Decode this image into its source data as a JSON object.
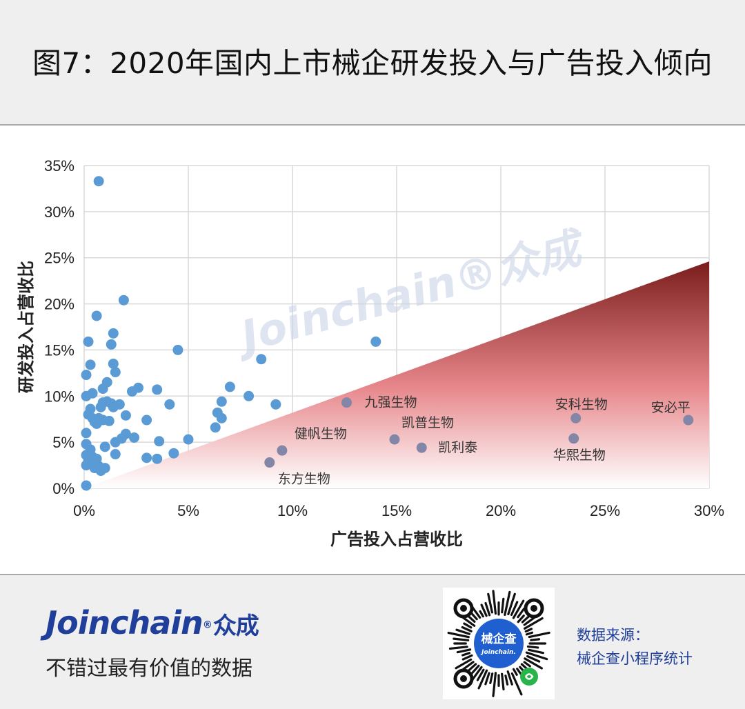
{
  "header": {
    "title": "图7：2020年国内上市械企研发投入与广告投入倾向"
  },
  "chart_data": {
    "type": "scatter",
    "xlabel": "广告投入占营收比",
    "ylabel": "研发投入占营收比",
    "xlim": [
      0,
      30
    ],
    "ylim": [
      0,
      35
    ],
    "x_ticks": [
      "0%",
      "5%",
      "10%",
      "15%",
      "20%",
      "25%",
      "30%"
    ],
    "y_ticks": [
      "0%",
      "5%",
      "10%",
      "15%",
      "20%",
      "25%",
      "30%",
      "35%"
    ],
    "grid": true,
    "watermark": "Joinchain®众成",
    "triangle_region": {
      "vertices": [
        [
          0,
          0
        ],
        [
          30,
          0
        ],
        [
          30,
          24.6
        ]
      ],
      "color_top": "#7a1c1c",
      "color_bottom": "#ffffff"
    },
    "colors": {
      "point": "#5b9bd5",
      "labeled_point": "#8486a8",
      "grid": "#d9d9d9"
    },
    "series": [
      {
        "values": [
          [
            0.1,
            0.3
          ],
          [
            0.1,
            2.5
          ],
          [
            0.2,
            3.0
          ],
          [
            0.1,
            3.6
          ],
          [
            0.3,
            4.2
          ],
          [
            0.1,
            4.8
          ],
          [
            0.1,
            6.0
          ],
          [
            0.2,
            8.0
          ],
          [
            0.3,
            8.6
          ],
          [
            0.4,
            7.6
          ],
          [
            0.6,
            7.0
          ],
          [
            0.4,
            10.3
          ],
          [
            0.1,
            10.0
          ],
          [
            0.1,
            12.3
          ],
          [
            0.3,
            13.4
          ],
          [
            0.2,
            15.9
          ],
          [
            0.6,
            18.7
          ],
          [
            0.7,
            33.3
          ],
          [
            0.5,
            2.2
          ],
          [
            0.6,
            3.2
          ],
          [
            0.8,
            1.9
          ],
          [
            1.0,
            2.2
          ],
          [
            0.5,
            2.9
          ],
          [
            0.4,
            3.4
          ],
          [
            0.7,
            2.4
          ],
          [
            0.5,
            7.2
          ],
          [
            0.7,
            7.6
          ],
          [
            0.9,
            7.4
          ],
          [
            1.2,
            7.3
          ],
          [
            0.8,
            8.8
          ],
          [
            0.9,
            9.3
          ],
          [
            1.1,
            9.4
          ],
          [
            1.3,
            9.2
          ],
          [
            1.4,
            8.8
          ],
          [
            1.7,
            9.1
          ],
          [
            0.9,
            10.8
          ],
          [
            1.1,
            11.5
          ],
          [
            1.5,
            12.6
          ],
          [
            1.4,
            13.5
          ],
          [
            1.3,
            15.6
          ],
          [
            1.4,
            16.8
          ],
          [
            1.0,
            4.5
          ],
          [
            1.5,
            3.7
          ],
          [
            1.5,
            5.0
          ],
          [
            1.8,
            5.4
          ],
          [
            2.0,
            5.9
          ],
          [
            2.0,
            7.9
          ],
          [
            2.4,
            5.5
          ],
          [
            2.3,
            10.5
          ],
          [
            2.6,
            10.9
          ],
          [
            1.9,
            20.4
          ],
          [
            3.0,
            3.3
          ],
          [
            3.0,
            7.4
          ],
          [
            3.5,
            3.2
          ],
          [
            3.6,
            5.1
          ],
          [
            3.5,
            10.7
          ],
          [
            4.1,
            9.1
          ],
          [
            4.3,
            3.8
          ],
          [
            4.5,
            15.0
          ],
          [
            5.0,
            5.3
          ],
          [
            6.3,
            6.6
          ],
          [
            6.4,
            8.2
          ],
          [
            6.6,
            9.4
          ],
          [
            6.6,
            7.6
          ],
          [
            7.0,
            11.0
          ],
          [
            7.9,
            10.0
          ],
          [
            8.5,
            14.0
          ],
          [
            9.2,
            9.1
          ],
          [
            14.0,
            15.9
          ]
        ]
      },
      {
        "values": [
          {
            "x": 12.6,
            "y": 9.3,
            "label": "九强生物"
          },
          {
            "x": 14.9,
            "y": 5.3,
            "label": "凯普生物"
          },
          {
            "x": 16.2,
            "y": 4.4,
            "label": "凯利泰"
          },
          {
            "x": 9.5,
            "y": 4.1,
            "label": "健帆生物"
          },
          {
            "x": 8.9,
            "y": 2.8,
            "label": "东方生物"
          },
          {
            "x": 23.6,
            "y": 7.6,
            "label": "安科生物"
          },
          {
            "x": 23.5,
            "y": 5.4,
            "label": "华熙生物"
          },
          {
            "x": 29.0,
            "y": 7.4,
            "label": "安必平"
          }
        ]
      }
    ]
  },
  "footer": {
    "brand_en": "Joinchain",
    "brand_mark": "®",
    "brand_cn": "众成",
    "slogan": "不错过最有价值的数据",
    "qr_center_cn": "械企查",
    "qr_center_en": "Joinchain.",
    "source_line1": "数据来源：",
    "source_line2": "械企查小程序统计"
  }
}
